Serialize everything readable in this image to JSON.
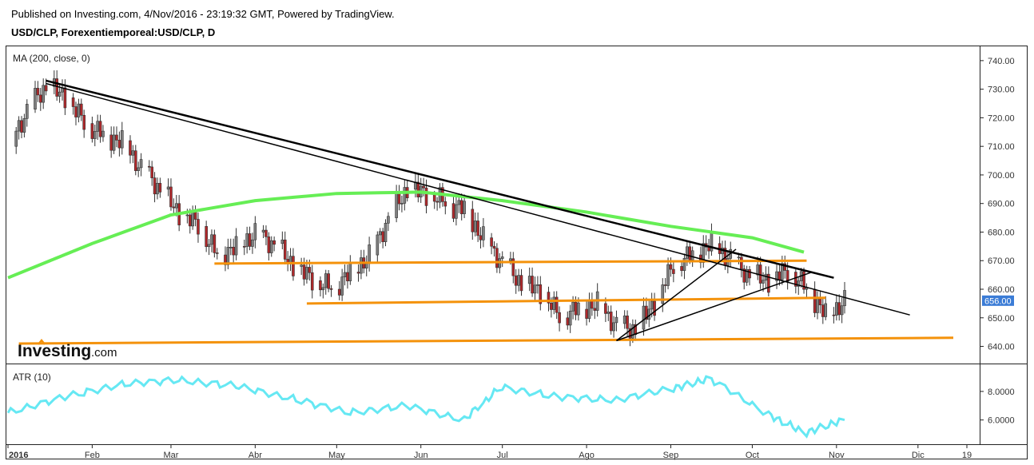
{
  "header": {
    "published": "Published on Investing.com, 4/Nov/2016 - 23:19:32 GMT, Powered by TradingView.",
    "symbol": "USD/CLP, Forexentiemporeal:USD/CLP, D"
  },
  "main_panel": {
    "indicator_label": "MA (200, close, 0)",
    "y_ticks": [
      "740.00",
      "730.00",
      "720.00",
      "710.00",
      "700.00",
      "690.00",
      "680.00",
      "670.00",
      "660.00",
      "650.00",
      "640.00"
    ],
    "last_price_label": "656.00"
  },
  "atr_panel": {
    "indicator_label": "ATR (10)",
    "y_ticks": [
      "8.0000",
      "6.0000"
    ]
  },
  "x_axis": {
    "labels": [
      "2016",
      "Feb",
      "Mar",
      "Abr",
      "May",
      "Jun",
      "Jul",
      "Ago",
      "Sep",
      "Oct",
      "Nov",
      "Dic",
      "19"
    ]
  },
  "logo": {
    "word": "Investing",
    "suffix": ".com"
  },
  "colors": {
    "up": "#7f7f7f",
    "down": "#b0282b",
    "ma": "#66ee55",
    "atr": "#66e8f3",
    "support": "#f4920b",
    "trend": "#000000",
    "price_badge": "#3b7cd6"
  },
  "chart_data": [
    {
      "type": "candlestick",
      "title": "USD/CLP, Forexentiemporeal:USD/CLP, D",
      "x_range": [
        "2016-01-01",
        "2016-12-19"
      ],
      "ylim": [
        634,
        745
      ],
      "last_close": 656.0,
      "series": [
        {
          "name": "MA (200, close, 0)",
          "x": [
            "2016-01-01",
            "2016-02-01",
            "2016-03-01",
            "2016-04-01",
            "2016-05-01",
            "2016-06-01",
            "2016-07-01",
            "2016-08-01",
            "2016-09-01",
            "2016-10-01",
            "2016-10-20"
          ],
          "values": [
            664,
            676,
            686,
            691,
            693.5,
            694,
            691,
            687,
            682,
            678,
            673
          ]
        }
      ],
      "candles_x": [
        "2016-01-01",
        "2016-01-08",
        "2016-01-15",
        "2016-01-22",
        "2016-01-29",
        "2016-02-05",
        "2016-02-12",
        "2016-02-19",
        "2016-02-26",
        "2016-03-04",
        "2016-03-11",
        "2016-03-18",
        "2016-03-25",
        "2016-04-01",
        "2016-04-08",
        "2016-04-15",
        "2016-04-22",
        "2016-04-29",
        "2016-05-06",
        "2016-05-13",
        "2016-05-20",
        "2016-05-27",
        "2016-06-03",
        "2016-06-10",
        "2016-06-17",
        "2016-06-24",
        "2016-07-01",
        "2016-07-08",
        "2016-07-15",
        "2016-07-22",
        "2016-07-29",
        "2016-08-05",
        "2016-08-12",
        "2016-08-19",
        "2016-08-26",
        "2016-09-02",
        "2016-09-09",
        "2016-09-16",
        "2016-09-23",
        "2016-09-30",
        "2016-10-07",
        "2016-10-14",
        "2016-10-21",
        "2016-10-28",
        "2016-11-04"
      ],
      "candles_close": [
        710,
        723,
        731,
        727,
        718,
        714,
        712,
        703,
        695,
        686,
        682,
        672,
        675,
        680,
        676,
        668,
        663,
        660,
        666,
        672,
        685,
        695,
        693,
        690,
        688,
        678,
        670,
        662,
        659,
        650,
        653,
        655,
        648,
        646,
        655,
        668,
        672,
        676,
        671,
        665,
        663,
        666,
        660,
        651,
        656
      ],
      "annotations": {
        "trendlines": [
          {
            "from": [
              "2016-01-15",
              733
            ],
            "to": [
              "2016-10-31",
              664
            ]
          },
          {
            "from": [
              "2016-01-15",
              732
            ],
            "to": [
              "2016-11-28",
              651
            ]
          },
          {
            "from": [
              "2016-08-12",
              642
            ],
            "to": [
              "2016-09-25",
              674
            ]
          },
          {
            "from": [
              "2016-08-12",
              642
            ],
            "to": [
              "2016-10-23",
              666
            ]
          }
        ],
        "horizontal_levels": [
          {
            "from": [
              "2016-03-17",
              669
            ],
            "to": [
              "2016-10-21",
              670
            ]
          },
          {
            "from": [
              "2016-04-20",
              655
            ],
            "to": [
              "2016-10-28",
              657
            ]
          },
          {
            "from": [
              "2016-01-05",
              641
            ],
            "to": [
              "2016-12-14",
              643
            ]
          }
        ]
      }
    },
    {
      "type": "line",
      "title": "ATR (10)",
      "x_range": [
        "2016-01-01",
        "2016-12-19"
      ],
      "ylim": [
        4.3,
        9.9
      ],
      "series": [
        {
          "name": "ATR (10)",
          "x": [
            "2016-01-01",
            "2016-01-22",
            "2016-02-12",
            "2016-03-04",
            "2016-03-25",
            "2016-04-15",
            "2016-05-06",
            "2016-05-27",
            "2016-06-17",
            "2016-07-01",
            "2016-07-22",
            "2016-08-12",
            "2016-09-02",
            "2016-09-16",
            "2016-10-07",
            "2016-10-21",
            "2016-11-04"
          ],
          "values": [
            6.5,
            7.6,
            8.5,
            8.8,
            8.4,
            7.5,
            6.5,
            7.0,
            6.0,
            8.3,
            7.6,
            7.4,
            8.2,
            8.9,
            6.4,
            5.1,
            6.0
          ]
        }
      ]
    }
  ]
}
